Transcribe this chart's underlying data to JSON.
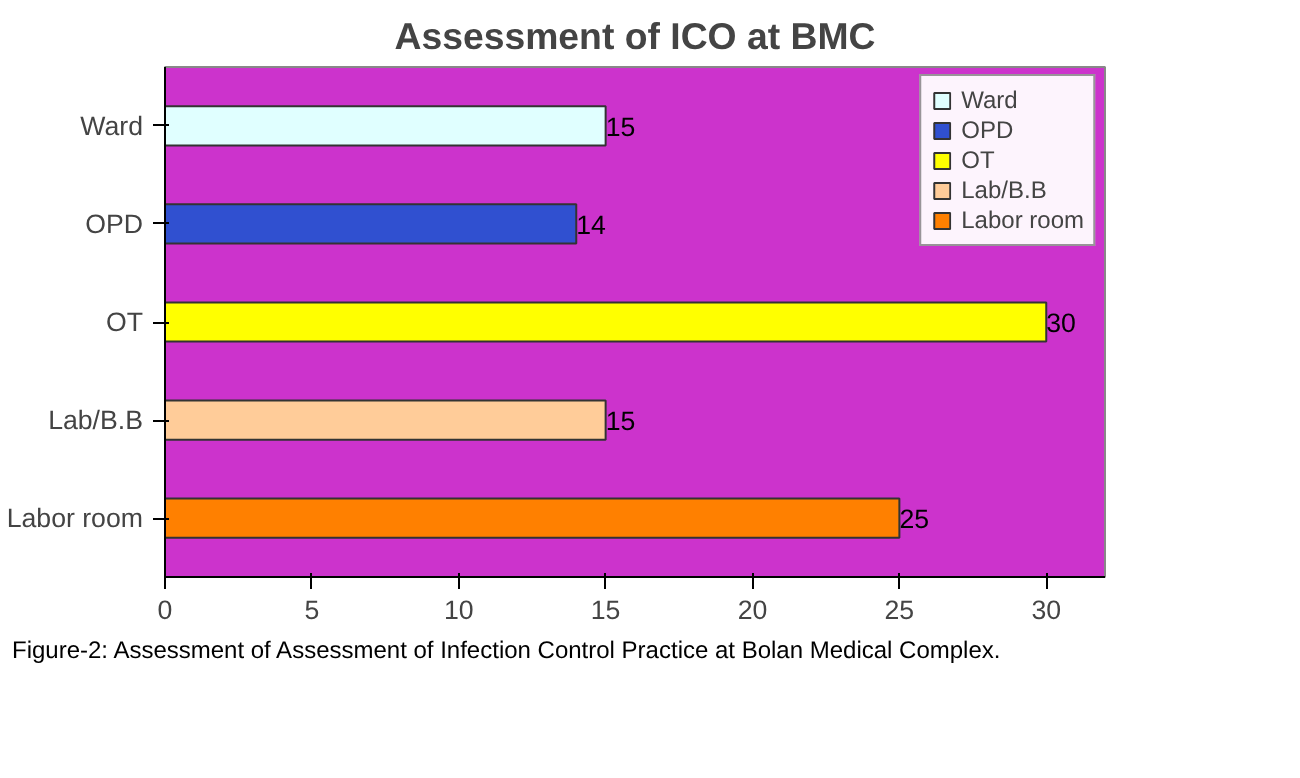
{
  "chart_data": {
    "type": "bar",
    "orientation": "horizontal",
    "stacked": true,
    "title": "Assessment of ICO at BMC",
    "categories": [
      "Ward",
      "OPD",
      "OT",
      "Lab/B.B",
      "Labor room"
    ],
    "series": [
      {
        "name": "Ward",
        "color": "#e0ffff",
        "values": [
          15,
          null,
          null,
          null,
          null
        ]
      },
      {
        "name": "OPD",
        "color": "#3050d0",
        "values": [
          null,
          14,
          null,
          null,
          null
        ]
      },
      {
        "name": "OT",
        "color": "#ffff00",
        "values": [
          null,
          null,
          30,
          null,
          null
        ]
      },
      {
        "name": "Lab/B.B",
        "color": "#ffcc99",
        "values": [
          null,
          null,
          null,
          15,
          null
        ]
      },
      {
        "name": "Labor room",
        "color": "#ff8000",
        "values": [
          null,
          null,
          null,
          null,
          25
        ]
      }
    ],
    "xlim": [
      0,
      32
    ],
    "xticks": [
      0,
      5,
      10,
      15,
      20,
      25,
      30
    ],
    "data_labels": true,
    "legend": "top right",
    "grid": false,
    "annotations": [
      "Figure-2: Assessment of Assessment of Infection Control Practice at Bolan Medical Complex."
    ]
  }
}
